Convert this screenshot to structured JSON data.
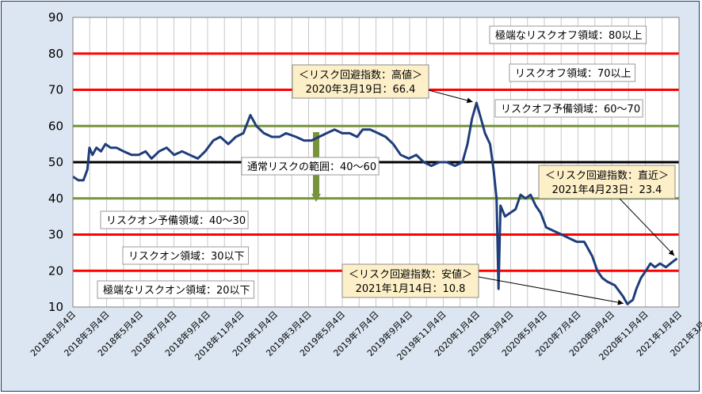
{
  "chart_data": {
    "type": "line",
    "title": "",
    "xlabel": "",
    "ylabel": "",
    "ylim": [
      10,
      90
    ],
    "yticks": [
      "10",
      "20",
      "30",
      "40",
      "50",
      "60",
      "70",
      "80",
      "90"
    ],
    "xticks": [
      "2018年1月4日",
      "2018年3月4日",
      "2018年5月4日",
      "2018年7月4日",
      "2018年9月4日",
      "2018年11月4日",
      "2019年1月4日",
      "2019年3月4日",
      "2019年5月4日",
      "2019年7月4日",
      "2019年9月4日",
      "2019年11月4日",
      "2020年1月4日",
      "2020年3月4日",
      "2020年5月4日",
      "2020年7月4日",
      "2020年9月4日",
      "2020年11月4日",
      "2021年1月4日",
      "2021年3月4日"
    ],
    "grid": true,
    "colors": {
      "series": "#1f3d7a",
      "red_line": "#ff0000",
      "green_line": "#77933c",
      "black_line": "#000000",
      "callout_fill": "#fdf0c8"
    },
    "reference_lines": [
      {
        "y": 80,
        "color": "red"
      },
      {
        "y": 70,
        "color": "red"
      },
      {
        "y": 60,
        "color": "green"
      },
      {
        "y": 50,
        "color": "black"
      },
      {
        "y": 40,
        "color": "green"
      },
      {
        "y": 30,
        "color": "red"
      },
      {
        "y": 20,
        "color": "red"
      }
    ],
    "zone_labels": [
      {
        "text": "極端なリスクオフ領域：80以上",
        "y": 85
      },
      {
        "text": "リスクオフ領域：70以上",
        "y": 75
      },
      {
        "text": "リスクオフ予備領域：60～70",
        "y": 65
      },
      {
        "text": "通常リスクの範囲：40～60",
        "y": 50
      },
      {
        "text": "リスクオン予備領域：40～30",
        "y": 35
      },
      {
        "text": "リスクオン領域：30以下",
        "y": 25
      },
      {
        "text": "極端なリスクオン領域：20以下",
        "y": 15
      }
    ],
    "callouts": [
      {
        "line1": "＜リスク回避指数：高値＞",
        "line2": "2020年3月19日：66.4",
        "x": "2020-03-19",
        "y": 66.4
      },
      {
        "line1": "＜リスク回避指数：直近＞",
        "line2": "2021年4月23日：23.4",
        "x": "2021-04-23",
        "y": 23.4
      },
      {
        "line1": "＜リスク回避指数：安値＞",
        "line2": "2021年1月14日：10.8",
        "x": "2021-01-14",
        "y": 10.8
      }
    ],
    "series": [
      {
        "values": [
          [
            "2018-01-04",
            46
          ],
          [
            "2018-01-15",
            45
          ],
          [
            "2018-01-25",
            45
          ],
          [
            "2018-02-02",
            48
          ],
          [
            "2018-02-06",
            54
          ],
          [
            "2018-02-12",
            52
          ],
          [
            "2018-02-20",
            54
          ],
          [
            "2018-03-01",
            53
          ],
          [
            "2018-03-10",
            55
          ],
          [
            "2018-03-20",
            54
          ],
          [
            "2018-04-01",
            54
          ],
          [
            "2018-04-15",
            53
          ],
          [
            "2018-05-01",
            52
          ],
          [
            "2018-05-15",
            52
          ],
          [
            "2018-05-29",
            53
          ],
          [
            "2018-06-10",
            51
          ],
          [
            "2018-06-25",
            53
          ],
          [
            "2018-07-10",
            54
          ],
          [
            "2018-07-25",
            52
          ],
          [
            "2018-08-10",
            53
          ],
          [
            "2018-08-25",
            52
          ],
          [
            "2018-09-10",
            51
          ],
          [
            "2018-09-25",
            53
          ],
          [
            "2018-10-11",
            56
          ],
          [
            "2018-10-25",
            57
          ],
          [
            "2018-11-10",
            55
          ],
          [
            "2018-11-25",
            57
          ],
          [
            "2018-12-10",
            58
          ],
          [
            "2018-12-24",
            63
          ],
          [
            "2019-01-05",
            60
          ],
          [
            "2019-01-20",
            58
          ],
          [
            "2019-02-05",
            57
          ],
          [
            "2019-02-20",
            57
          ],
          [
            "2019-03-05",
            58
          ],
          [
            "2019-03-25",
            57
          ],
          [
            "2019-04-10",
            56
          ],
          [
            "2019-04-25",
            56
          ],
          [
            "2019-05-10",
            57
          ],
          [
            "2019-05-25",
            58
          ],
          [
            "2019-06-10",
            59
          ],
          [
            "2019-06-25",
            58
          ],
          [
            "2019-07-10",
            58
          ],
          [
            "2019-07-25",
            57
          ],
          [
            "2019-08-05",
            59
          ],
          [
            "2019-08-20",
            59
          ],
          [
            "2019-09-05",
            58
          ],
          [
            "2019-09-20",
            57
          ],
          [
            "2019-10-05",
            55
          ],
          [
            "2019-10-20",
            52
          ],
          [
            "2019-11-05",
            51
          ],
          [
            "2019-11-20",
            52
          ],
          [
            "2019-12-05",
            50
          ],
          [
            "2019-12-20",
            49
          ],
          [
            "2020-01-05",
            50
          ],
          [
            "2020-01-20",
            50
          ],
          [
            "2020-02-05",
            49
          ],
          [
            "2020-02-20",
            50
          ],
          [
            "2020-03-01",
            55
          ],
          [
            "2020-03-10",
            62
          ],
          [
            "2020-03-19",
            66.4
          ],
          [
            "2020-03-28",
            62
          ],
          [
            "2020-04-05",
            58
          ],
          [
            "2020-04-15",
            55
          ],
          [
            "2020-04-22",
            48
          ],
          [
            "2020-04-28",
            40
          ],
          [
            "2020-05-02",
            15
          ],
          [
            "2020-05-06",
            38
          ],
          [
            "2020-05-15",
            35
          ],
          [
            "2020-05-25",
            36
          ],
          [
            "2020-06-05",
            37
          ],
          [
            "2020-06-15",
            41
          ],
          [
            "2020-06-25",
            40
          ],
          [
            "2020-07-05",
            41
          ],
          [
            "2020-07-15",
            38
          ],
          [
            "2020-07-25",
            36
          ],
          [
            "2020-08-05",
            32
          ],
          [
            "2020-08-20",
            31
          ],
          [
            "2020-09-05",
            30
          ],
          [
            "2020-09-20",
            29
          ],
          [
            "2020-10-05",
            28
          ],
          [
            "2020-10-20",
            28
          ],
          [
            "2020-11-05",
            24
          ],
          [
            "2020-11-15",
            20
          ],
          [
            "2020-11-25",
            18
          ],
          [
            "2020-12-05",
            17
          ],
          [
            "2020-12-20",
            16
          ],
          [
            "2021-01-05",
            13
          ],
          [
            "2021-01-14",
            10.8
          ],
          [
            "2021-01-25",
            12
          ],
          [
            "2021-02-01",
            15
          ],
          [
            "2021-02-10",
            18
          ],
          [
            "2021-02-20",
            20
          ],
          [
            "2021-03-01",
            22
          ],
          [
            "2021-03-10",
            21
          ],
          [
            "2021-03-20",
            22
          ],
          [
            "2021-04-01",
            21
          ],
          [
            "2021-04-10",
            22
          ],
          [
            "2021-04-23",
            23.4
          ]
        ]
      }
    ]
  }
}
